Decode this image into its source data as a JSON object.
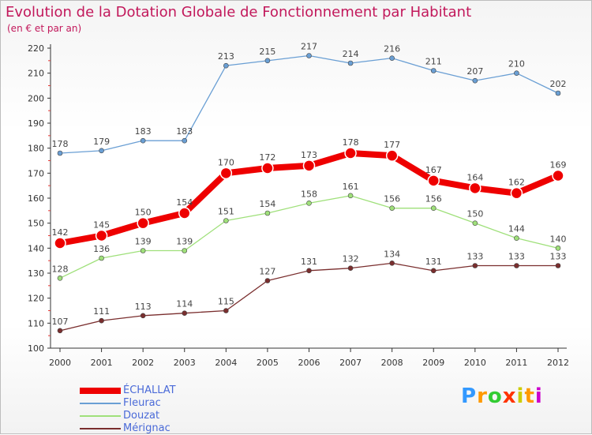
{
  "header": {
    "title": "Evolution de la Dotation Globale de Fonctionnement par Habitant",
    "subtitle": "(en € et par an)"
  },
  "chart_data": {
    "type": "line",
    "title": "Evolution de la Dotation Globale de Fonctionnement par Habitant",
    "subtitle": "(en € et par an)",
    "xlabel": "",
    "ylabel": "",
    "x": [
      "2000",
      "2001",
      "2002",
      "2003",
      "2004",
      "2005",
      "2006",
      "2007",
      "2008",
      "2009",
      "2010",
      "2011",
      "2012"
    ],
    "ylim": [
      100,
      220
    ],
    "yticks": [
      100,
      110,
      120,
      130,
      140,
      150,
      160,
      170,
      180,
      190,
      200,
      210,
      220
    ],
    "grid": false,
    "legend": "bottom-left",
    "series": [
      {
        "name": "ÉCHALLAT",
        "color": "#ee0000",
        "values": [
          142,
          145,
          150,
          154,
          170,
          172,
          173,
          178,
          177,
          167,
          164,
          162,
          169
        ]
      },
      {
        "name": "Fleurac",
        "color": "#6a9fd4",
        "values": [
          178,
          179,
          183,
          183,
          213,
          215,
          217,
          214,
          216,
          211,
          207,
          210,
          202
        ]
      },
      {
        "name": "Douzat",
        "color": "#9fe07a",
        "values": [
          128,
          136,
          139,
          139,
          151,
          154,
          158,
          161,
          156,
          156,
          150,
          144,
          140
        ]
      },
      {
        "name": "Mérignac",
        "color": "#7a2e2e",
        "values": [
          107,
          111,
          113,
          114,
          115,
          127,
          131,
          132,
          134,
          131,
          133,
          133,
          133
        ]
      }
    ]
  },
  "logo": {
    "letters": [
      "P",
      "r",
      "o",
      "x",
      "i",
      "t",
      "i"
    ],
    "colors": [
      "#3399ff",
      "#ff9900",
      "#33cc33",
      "#ff3300",
      "#cccc00",
      "#ff9900",
      "#cc00cc"
    ]
  }
}
